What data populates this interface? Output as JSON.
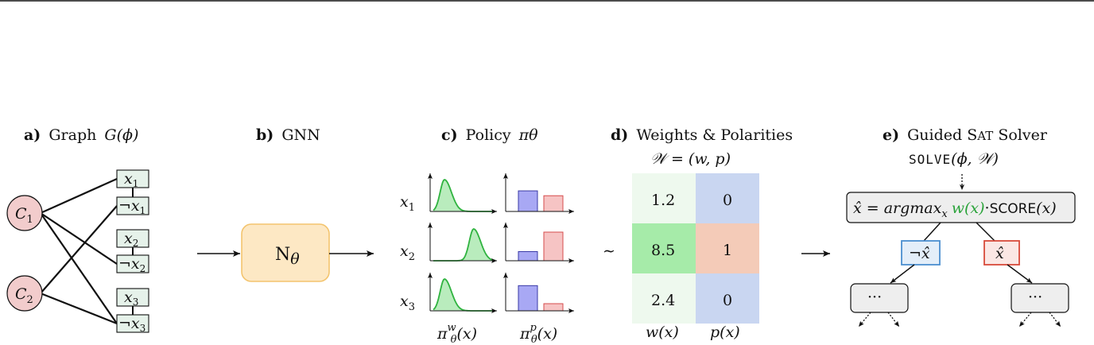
{
  "colors": {
    "clause_fill": "#f2cccc",
    "var_fill": "#e6f2ea",
    "gnn_fill": "#fde8c4",
    "gnn_stroke": "#f3c46e",
    "curve": "#2fb33f",
    "curve_fill": "#b9ecbd",
    "bar_w": "#a8a8f4",
    "bar_w_stroke": "#3a3aa6",
    "bar_p": "#f6c4c4",
    "bar_p_stroke": "#d64c4c",
    "weight_light": "#eef9ee",
    "weight_strong": "#a6eba9",
    "pol_zero": "#c9d6f1",
    "pol_one": "#f4cbb8",
    "node_box": "#eeeeee",
    "neg_stroke": "#4b8fd0",
    "neg_fill": "#e3eef9",
    "pos_stroke": "#d84a3a",
    "pos_fill": "#fbe7e4",
    "green_math": "#2aa33a"
  },
  "panels": {
    "a": {
      "letter": "a)",
      "title": "Graph",
      "math": "G(ϕ)"
    },
    "b": {
      "letter": "b)",
      "title": "GNN"
    },
    "c": {
      "letter": "c)",
      "title": "Policy",
      "math": "πθ"
    },
    "d": {
      "letter": "d)",
      "title": "Weights & Polarities",
      "formula": "𝒲 = (w, p)"
    },
    "e": {
      "letter": "e)",
      "title_pre": "Guided S",
      "title_sc": "AT",
      "title_post": " Solver",
      "call_sc": "SOLVE",
      "call_args": "(ϕ, 𝒲)"
    }
  },
  "graph": {
    "clauses": [
      {
        "label": "C",
        "sub": "1"
      },
      {
        "label": "C",
        "sub": "2"
      }
    ],
    "literals": [
      {
        "label": "x",
        "sub": "1",
        "neg": false
      },
      {
        "label": "x",
        "sub": "1",
        "neg": true
      },
      {
        "label": "x",
        "sub": "2",
        "neg": false
      },
      {
        "label": "x",
        "sub": "2",
        "neg": true
      },
      {
        "label": "x",
        "sub": "3",
        "neg": false
      },
      {
        "label": "x",
        "sub": "3",
        "neg": true
      }
    ],
    "edges": [
      [
        0,
        0
      ],
      [
        0,
        3
      ],
      [
        0,
        5
      ],
      [
        1,
        1
      ],
      [
        1,
        5
      ]
    ]
  },
  "gnn": {
    "label": "N",
    "sub": "θ"
  },
  "policy": {
    "rows": [
      {
        "var": "x",
        "sub": "1",
        "peak": 0.18,
        "bar_w": 0.72,
        "bar_p": 0.55
      },
      {
        "var": "x",
        "sub": "2",
        "peak": 0.65,
        "bar_w": 0.32,
        "bar_p": 1.0
      },
      {
        "var": "x",
        "sub": "3",
        "peak": 0.18,
        "bar_w": 0.88,
        "bar_p": 0.25
      }
    ],
    "xlabel_w": "π",
    "xlabel_w_sup": "w",
    "xlabel_w_sub": "θ",
    "xlabel_w_arg": "(x)",
    "xlabel_p": "π",
    "xlabel_p_sup": "p",
    "xlabel_p_sub": "θ",
    "xlabel_p_arg": "(x)"
  },
  "weights": {
    "tilde": "∼",
    "w_values": [
      "1.2",
      "8.5",
      "2.4"
    ],
    "p_values": [
      "0",
      "1",
      "0"
    ],
    "col_w_label": "w(x)",
    "col_p_label": "p(x)"
  },
  "solver": {
    "formula_pre": "x̂ = argmax",
    "formula_sub": "x",
    "formula_green": "w(x)",
    "formula_dot": "·",
    "formula_score_sc": "SCORE",
    "formula_arg": "(x)",
    "neg_label": "¬x̂",
    "pos_label": "x̂",
    "leaf_label": "···"
  }
}
